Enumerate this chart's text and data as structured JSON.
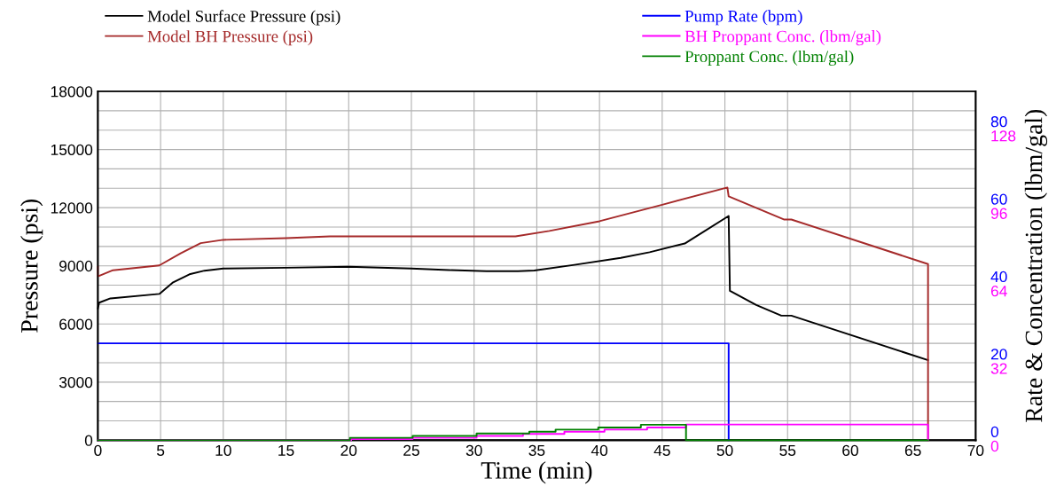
{
  "chart_data": {
    "type": "line",
    "xlabel": "Time (min)",
    "ylabel": "Pressure (psi)",
    "y2label": "Rate & Concentration (lbm/gal)",
    "xlim": [
      0,
      70
    ],
    "xticks": [
      0,
      5,
      10,
      15,
      20,
      25,
      30,
      35,
      40,
      45,
      50,
      55,
      60,
      65,
      70
    ],
    "ylim": [
      0,
      18000
    ],
    "yticks": [
      0,
      {
        "value": 1000,
        "label": null
      },
      {
        "value": 2000,
        "label": null
      },
      3000,
      {
        "value": 4000,
        "label": null
      },
      {
        "value": 5000,
        "label": null
      },
      6000,
      {
        "value": 7000,
        "label": null
      },
      {
        "value": 8000,
        "label": null
      },
      9000,
      {
        "value": 10000,
        "label": null
      },
      {
        "value": 11000,
        "label": null
      },
      12000,
      {
        "value": 13000,
        "label": null
      },
      {
        "value": 14000,
        "label": null
      },
      15000,
      {
        "value": 16000,
        "label": null
      },
      {
        "value": 17000,
        "label": null
      },
      18000
    ],
    "y2lim": [
      0,
      90
    ],
    "y2ticks": [
      0,
      20,
      40,
      60,
      80
    ],
    "y3lim": [
      0,
      144
    ],
    "y3ticks": [
      0,
      32,
      64,
      96,
      128
    ],
    "grid": true,
    "legend": "top",
    "marker": "none",
    "line_style": "solid",
    "series": [
      {
        "name": "Model Surface Pressure (psi)",
        "color": "#000000",
        "x": [
          0,
          0.1,
          1,
          4.9,
          6,
          7.3,
          8.5,
          10,
          15,
          20,
          25,
          28,
          31,
          33.5,
          34.8,
          38,
          41.7,
          44,
          46.8,
          50.3,
          50.4,
          52.5,
          54.5,
          55.3,
          66.2
        ],
        "values": [
          6800,
          7100,
          7320,
          7550,
          8150,
          8560,
          8750,
          8860,
          8900,
          8950,
          8860,
          8780,
          8720,
          8720,
          8760,
          9050,
          9410,
          9700,
          10150,
          11570,
          7710,
          6980,
          6430,
          6430,
          4130
        ]
      },
      {
        "name": "Model BH Pressure (psi)",
        "color": "#a52a2a",
        "x": [
          0,
          0,
          1.2,
          4.9,
          6.6,
          8.2,
          10,
          15,
          18.5,
          33.3,
          36,
          40,
          45,
          50.2,
          50.3,
          54.7,
          55.3,
          66.2,
          66.2
        ],
        "values": [
          8950,
          8450,
          8770,
          9020,
          9640,
          10170,
          10340,
          10430,
          10520,
          10520,
          10800,
          11300,
          12150,
          13040,
          12580,
          11390,
          11390,
          9090,
          0
        ]
      },
      {
        "name": "Pump Rate (bpm)",
        "color": "#0000ff",
        "axis": "y2",
        "x": [
          0,
          50.3,
          50.3
        ],
        "values": [
          25,
          25,
          0
        ]
      },
      {
        "name": "BH Proppant Conc. (lbm/gal)",
        "color": "#ff00ff",
        "type": "step",
        "axis": "y3",
        "x": [
          0,
          20.2,
          25.1,
          30.2,
          33.9,
          37.2,
          40.4,
          43.8,
          46.9,
          66.2,
          66.2
        ],
        "values": [
          0,
          0.5,
          1,
          1.8,
          2.6,
          3.5,
          4.4,
          5.3,
          6.5,
          6.5,
          0
        ]
      },
      {
        "name": "Proppant Conc. (lbm/gal)",
        "color": "#008000",
        "type": "step",
        "axis": "y3",
        "x": [
          0,
          20.1,
          25.1,
          30.2,
          34.4,
          36.5,
          39.9,
          43.3,
          46.9,
          66.2
        ],
        "values": [
          0,
          1,
          1.8,
          2.8,
          3.5,
          4.4,
          5.3,
          6.4,
          0,
          0
        ]
      }
    ]
  }
}
